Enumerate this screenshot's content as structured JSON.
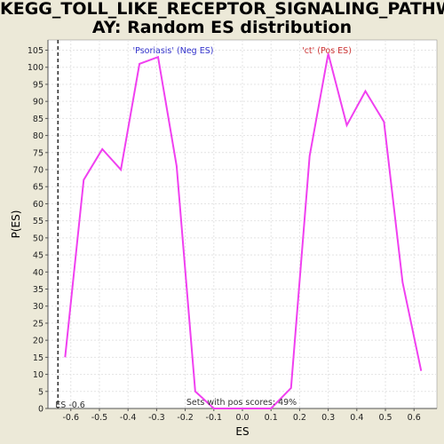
{
  "title_line1": "KEGG_TOLL_LIKE_RECEPTOR_SIGNALING_PATHW",
  "title_line2": "AY: Random ES distribution",
  "chart_data": {
    "type": "line",
    "xlabel": "ES",
    "ylabel": "P(ES)",
    "xlim": [
      -0.68,
      0.68
    ],
    "ylim": [
      0,
      108
    ],
    "x_ticks": [
      "-0.6",
      "-0.5",
      "-0.4",
      "-0.3",
      "-0.2",
      "-0.1",
      "0.0",
      "0.1",
      "0.2",
      "0.3",
      "0.4",
      "0.5",
      "0.6"
    ],
    "x_tick_values": [
      -0.6,
      -0.5,
      -0.4,
      -0.3,
      -0.2,
      -0.1,
      0.0,
      0.1,
      0.2,
      0.3,
      0.4,
      0.5,
      0.6
    ],
    "y_ticks": [
      0,
      5,
      10,
      15,
      20,
      25,
      30,
      35,
      40,
      45,
      50,
      55,
      60,
      65,
      70,
      75,
      80,
      85,
      90,
      95,
      100,
      105
    ],
    "grid": true,
    "series": [
      {
        "color": "#F040F0",
        "x": [
          -0.62,
          -0.555,
          -0.49,
          -0.425,
          -0.36,
          -0.295,
          -0.23,
          -0.165,
          -0.1,
          -0.035,
          0.03,
          0.1,
          0.17,
          0.235,
          0.3,
          0.365,
          0.43,
          0.495,
          0.56,
          0.625
        ],
        "y": [
          15,
          67,
          76,
          70,
          101,
          103,
          71,
          5,
          0,
          0,
          0,
          0,
          6,
          74,
          104,
          83,
          93,
          84,
          37,
          11
        ]
      }
    ],
    "vline": {
      "x": -0.645,
      "label": "ES -0.6",
      "style": "dashed"
    },
    "annotations": {
      "neg_label": "'Psoriasis' (Neg ES)",
      "neg_color": "#3333CC",
      "pos_label": "'ct' (Pos ES)",
      "pos_color": "#CC3333",
      "bottom_note": "Sets with pos scores: 49%"
    }
  }
}
